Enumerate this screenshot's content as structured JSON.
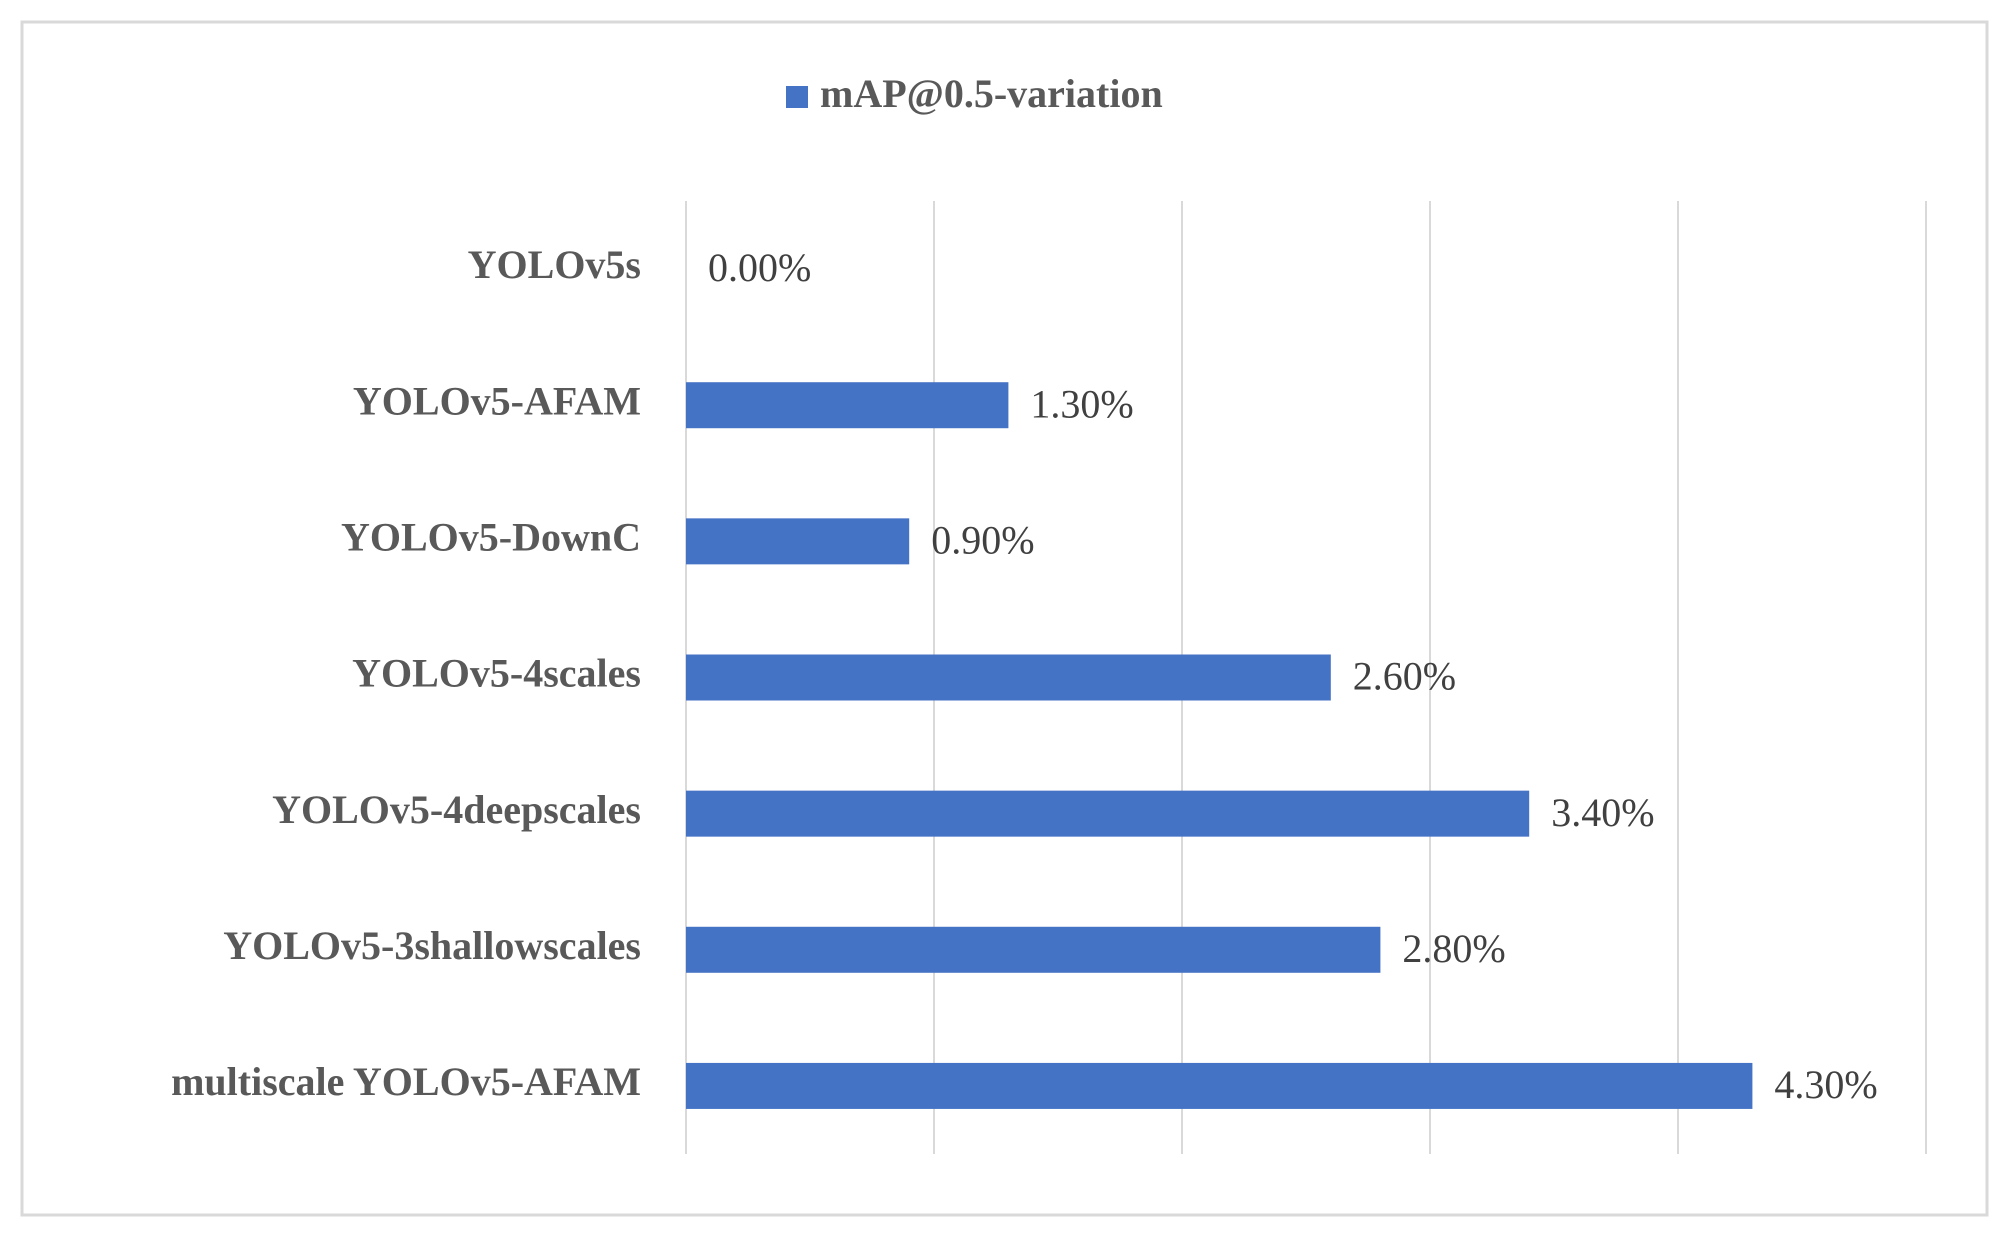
{
  "chart_data": {
    "type": "bar",
    "orientation": "horizontal",
    "categories": [
      "YOLOv5s",
      "YOLOv5-AFAM",
      "YOLOv5-DownC",
      "YOLOv5-4scales",
      "YOLOv5-4deepscales",
      "YOLOv5-3shallowscales",
      "multiscale YOLOv5-AFAM"
    ],
    "series": [
      {
        "name": "mAP@0.5-variation",
        "color": "#4472c4",
        "values": [
          0,
          1.3,
          0.9,
          2.6,
          3.4,
          2.8,
          4.3
        ],
        "value_labels": [
          "0.00%",
          "1.30%",
          "0.90%",
          "2.60%",
          "3.40%",
          "2.80%",
          "4.30%"
        ]
      }
    ],
    "xlim": [
      0,
      5
    ],
    "xticks": [
      0,
      1,
      2,
      3,
      4,
      5
    ],
    "grid": true,
    "legend": "top"
  }
}
